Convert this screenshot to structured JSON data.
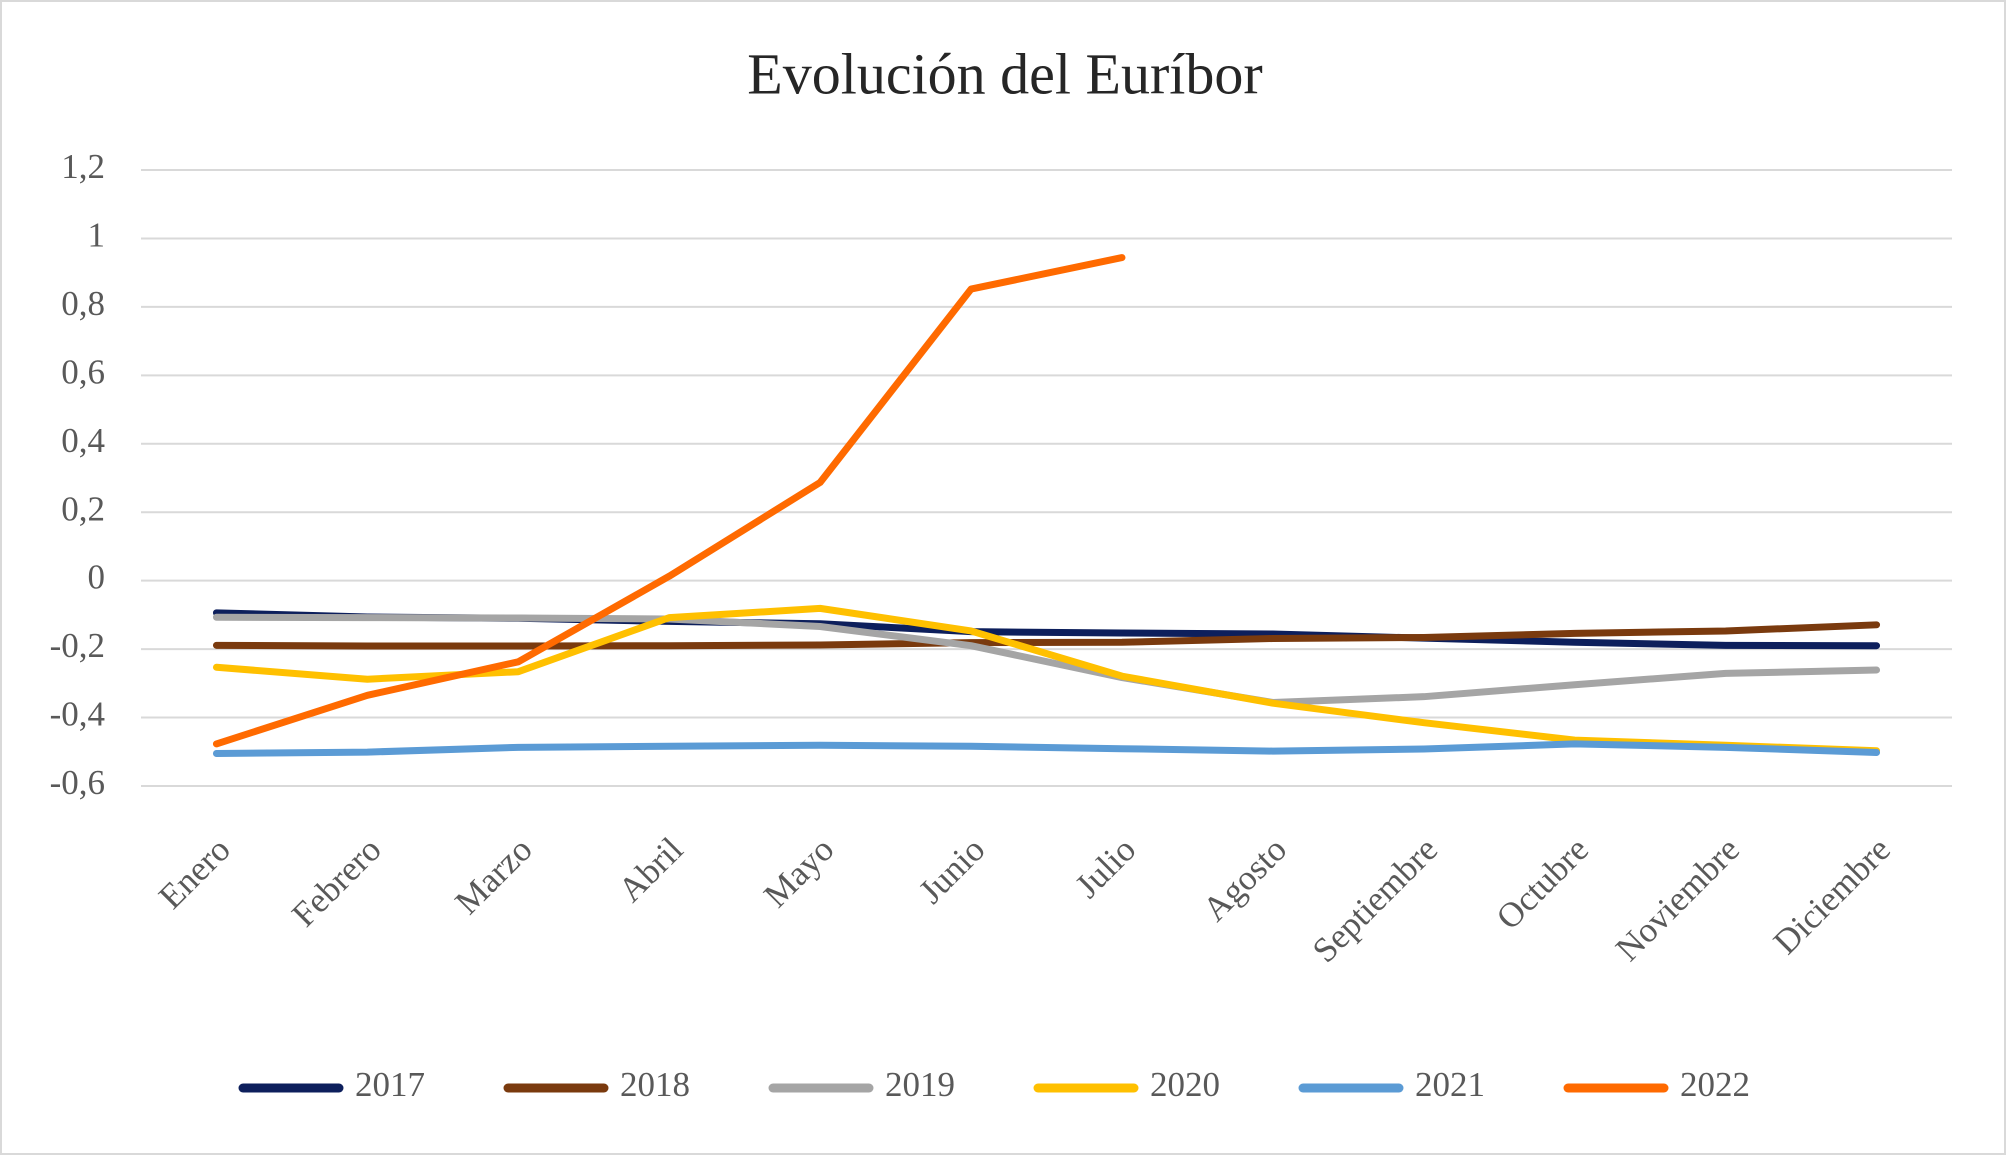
{
  "chart_data": {
    "type": "line",
    "title": "Evolución del Euríbor",
    "categories": [
      "Enero",
      "Febrero",
      "Marzo",
      "Abril",
      "Mayo",
      "Junio",
      "Julio",
      "Agosto",
      "Septiembre",
      "Octubre",
      "Noviembre",
      "Diciembre"
    ],
    "series": [
      {
        "name": "2017",
        "color": "#0d1f5c",
        "values": [
          -0.094,
          -0.106,
          -0.11,
          -0.119,
          -0.126,
          -0.149,
          -0.153,
          -0.156,
          -0.168,
          -0.18,
          -0.189,
          -0.19
        ]
      },
      {
        "name": "2018",
        "color": "#7a3a0e",
        "values": [
          -0.189,
          -0.191,
          -0.191,
          -0.19,
          -0.188,
          -0.181,
          -0.18,
          -0.169,
          -0.166,
          -0.154,
          -0.147,
          -0.129
        ]
      },
      {
        "name": "2019",
        "color": "#a5a5a5",
        "values": [
          -0.107,
          -0.108,
          -0.109,
          -0.112,
          -0.134,
          -0.19,
          -0.283,
          -0.356,
          -0.339,
          -0.304,
          -0.271,
          -0.261
        ]
      },
      {
        "name": "2020",
        "color": "#ffc000",
        "values": [
          -0.253,
          -0.288,
          -0.266,
          -0.108,
          -0.081,
          -0.147,
          -0.279,
          -0.358,
          -0.415,
          -0.466,
          -0.481,
          -0.497
        ]
      },
      {
        "name": "2021",
        "color": "#5b9bd5",
        "values": [
          -0.505,
          -0.501,
          -0.487,
          -0.484,
          -0.481,
          -0.484,
          -0.491,
          -0.498,
          -0.492,
          -0.477,
          -0.487,
          -0.502
        ]
      },
      {
        "name": "2022",
        "color": "#ff6a00",
        "values": [
          -0.477,
          -0.335,
          -0.237,
          0.013,
          0.287,
          0.852,
          0.944,
          null,
          null,
          null,
          null,
          null
        ]
      }
    ],
    "ylim": [
      -0.6,
      1.2
    ],
    "yticks": [
      {
        "value": 1.2,
        "label": "1,2"
      },
      1,
      {
        "value": 0.8,
        "label": "0,8"
      },
      {
        "value": 0.6,
        "label": "0,6"
      },
      {
        "value": 0.4,
        "label": "0,4"
      },
      {
        "value": 0.2,
        "label": "0,2"
      },
      0,
      {
        "value": -0.2,
        "label": "-0,2"
      },
      {
        "value": -0.4,
        "label": "-0,4"
      },
      {
        "value": -0.6,
        "label": "-0,6"
      }
    ],
    "grid": true,
    "legend": "bottom"
  }
}
